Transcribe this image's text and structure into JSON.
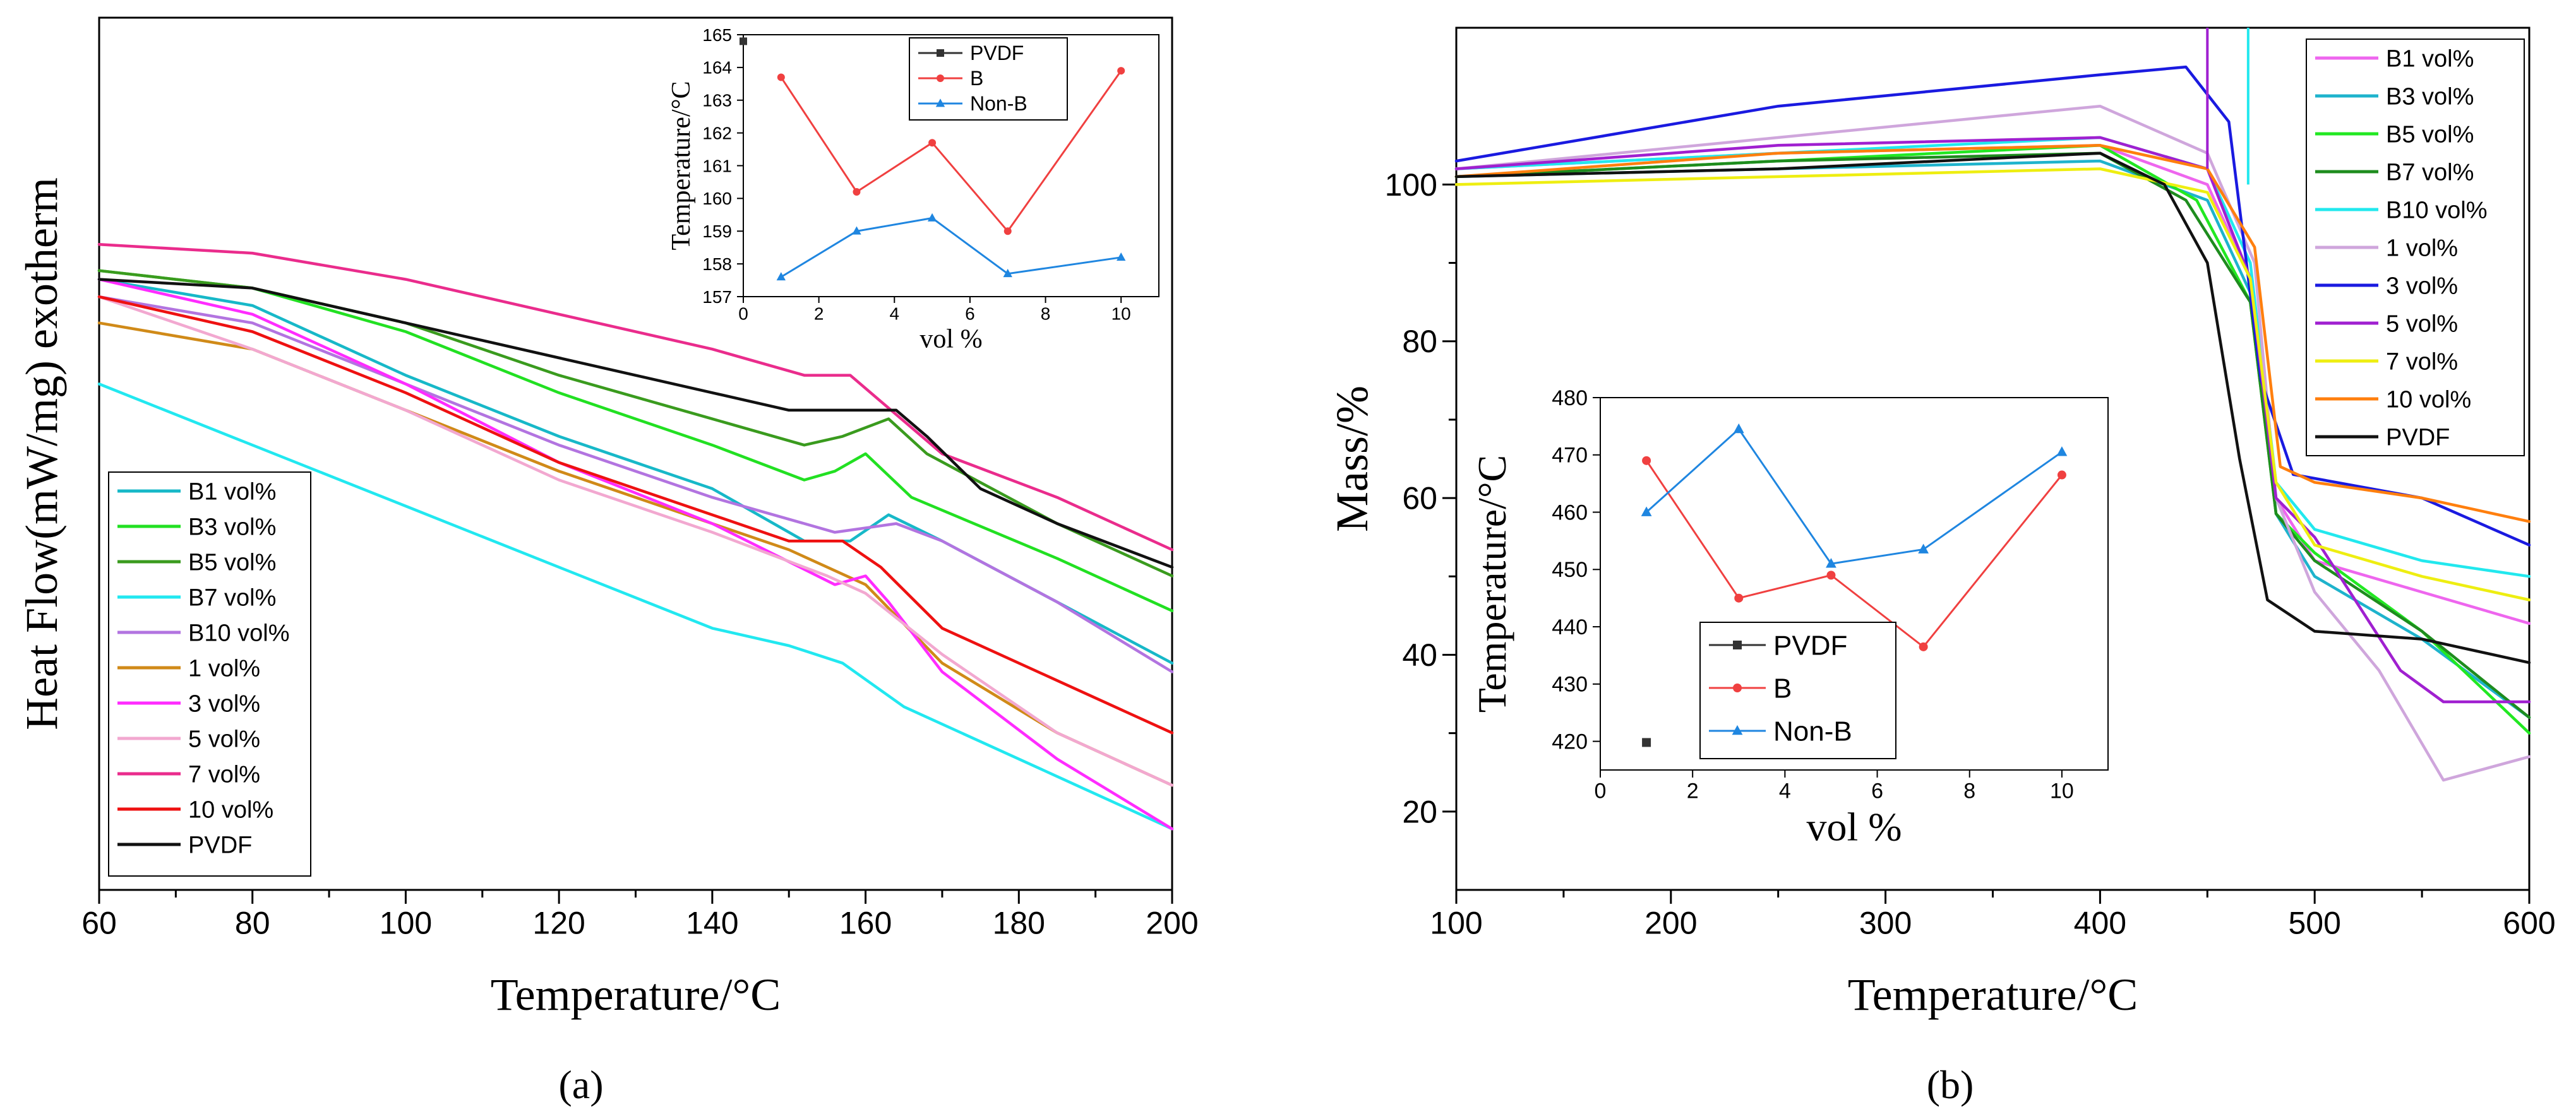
{
  "figure": {
    "caption_a": "(a)",
    "caption_b": "(b)"
  },
  "chart_data": [
    {
      "type": "line",
      "panel": "a",
      "title": "",
      "xlabel": "Temperature/°C",
      "ylabel": "Heat Flow(mW/mg) exotherm",
      "xlim": [
        60,
        200
      ],
      "ylim": [
        0,
        1
      ],
      "xticks": [
        60,
        80,
        100,
        120,
        140,
        160,
        180,
        200
      ],
      "y_tick_labels_shown": false,
      "legend_position": "bottom-left",
      "series": [
        {
          "name": "B1 vol%",
          "color": "#17b8c8",
          "x": [
            60,
            80,
            100,
            120,
            140,
            152,
            158,
            163,
            170,
            185,
            200
          ],
          "y": [
            0.7,
            0.67,
            0.59,
            0.52,
            0.46,
            0.4,
            0.4,
            0.43,
            0.4,
            0.33,
            0.26
          ]
        },
        {
          "name": "B3 vol%",
          "color": "#22e022",
          "x": [
            60,
            80,
            100,
            120,
            140,
            152,
            156,
            160,
            166,
            185,
            200
          ],
          "y": [
            0.71,
            0.69,
            0.64,
            0.57,
            0.51,
            0.47,
            0.48,
            0.5,
            0.45,
            0.38,
            0.32
          ]
        },
        {
          "name": "B5 vol%",
          "color": "#3a9b1e",
          "x": [
            60,
            80,
            100,
            120,
            140,
            152,
            157,
            163,
            168,
            185,
            200
          ],
          "y": [
            0.71,
            0.69,
            0.65,
            0.59,
            0.54,
            0.51,
            0.52,
            0.54,
            0.5,
            0.42,
            0.36
          ]
        },
        {
          "name": "B7 vol%",
          "color": "#22e8f0",
          "x": [
            60,
            80,
            100,
            120,
            140,
            150,
            157,
            165,
            185,
            200
          ],
          "y": [
            0.58,
            0.51,
            0.44,
            0.37,
            0.3,
            0.28,
            0.26,
            0.21,
            0.13,
            0.07
          ]
        },
        {
          "name": "B10 vol%",
          "color": "#b274e0",
          "x": [
            60,
            80,
            100,
            120,
            140,
            156,
            164,
            170,
            185,
            200
          ],
          "y": [
            0.68,
            0.65,
            0.58,
            0.51,
            0.45,
            0.41,
            0.42,
            0.4,
            0.33,
            0.25
          ]
        },
        {
          "name": "1 vol%",
          "color": "#d08a18",
          "x": [
            60,
            80,
            100,
            120,
            140,
            150,
            160,
            170,
            185,
            200
          ],
          "y": [
            0.65,
            0.62,
            0.55,
            0.48,
            0.42,
            0.39,
            0.35,
            0.26,
            0.18,
            0.12
          ]
        },
        {
          "name": "3 vol%",
          "color": "#ff2cff",
          "x": [
            60,
            80,
            100,
            120,
            140,
            156,
            160,
            163,
            170,
            185,
            200
          ],
          "y": [
            0.7,
            0.66,
            0.58,
            0.49,
            0.42,
            0.35,
            0.36,
            0.33,
            0.25,
            0.15,
            0.07
          ]
        },
        {
          "name": "5 vol%",
          "color": "#f2a8d0",
          "x": [
            60,
            80,
            100,
            120,
            140,
            155,
            160,
            170,
            185,
            200
          ],
          "y": [
            0.68,
            0.62,
            0.55,
            0.47,
            0.41,
            0.36,
            0.34,
            0.27,
            0.18,
            0.12
          ]
        },
        {
          "name": "7 vol%",
          "color": "#ea2c8c",
          "x": [
            60,
            80,
            100,
            120,
            140,
            152,
            158,
            162,
            170,
            185,
            200
          ],
          "y": [
            0.74,
            0.73,
            0.7,
            0.66,
            0.62,
            0.59,
            0.59,
            0.56,
            0.5,
            0.45,
            0.39
          ]
        },
        {
          "name": "10 vol%",
          "color": "#ee1111",
          "x": [
            60,
            80,
            100,
            120,
            140,
            150,
            157,
            162,
            170,
            185,
            200
          ],
          "y": [
            0.68,
            0.64,
            0.57,
            0.49,
            0.43,
            0.4,
            0.4,
            0.37,
            0.3,
            0.24,
            0.18
          ]
        },
        {
          "name": "PVDF",
          "color": "#111111",
          "x": [
            60,
            80,
            100,
            120,
            140,
            150,
            158,
            164,
            168,
            175,
            185,
            200
          ],
          "y": [
            0.7,
            0.69,
            0.65,
            0.61,
            0.57,
            0.55,
            0.55,
            0.55,
            0.52,
            0.46,
            0.42,
            0.37
          ]
        }
      ],
      "inset": {
        "type": "line",
        "xlabel": "vol %",
        "ylabel": "Temperature/°C",
        "xlim": [
          0,
          11
        ],
        "ylim": [
          157,
          165
        ],
        "xticks": [
          0,
          2,
          4,
          6,
          8,
          10
        ],
        "yticks": [
          157,
          158,
          159,
          160,
          161,
          162,
          163,
          164,
          165
        ],
        "legend_position": "top-right",
        "series": [
          {
            "name": "PVDF",
            "color": "#333333",
            "x": [
              0
            ],
            "y": [
              164.8
            ]
          },
          {
            "name": "B",
            "color": "#f04040",
            "x": [
              1,
              3,
              5,
              7,
              10
            ],
            "y": [
              163.7,
              160.2,
              161.7,
              159.0,
              163.9
            ]
          },
          {
            "name": "Non-B",
            "color": "#1f86e0",
            "x": [
              1,
              3,
              5,
              7,
              10
            ],
            "y": [
              157.6,
              159.0,
              159.4,
              157.7,
              158.2
            ]
          }
        ]
      }
    },
    {
      "type": "line",
      "panel": "b",
      "title": "",
      "xlabel": "Temperature/°C",
      "ylabel": "Mass/%",
      "xlim": [
        100,
        600
      ],
      "ylim": [
        10,
        120
      ],
      "xticks": [
        100,
        200,
        300,
        400,
        500,
        600
      ],
      "yticks": [
        20,
        40,
        60,
        80,
        100
      ],
      "legend_position": "top-right",
      "series": [
        {
          "name": "B1 vol%",
          "color": "#ee66ee",
          "x": [
            100,
            250,
            400,
            450,
            470,
            482,
            500,
            550,
            600
          ],
          "y": [
            102,
            104,
            105,
            100,
            88,
            60,
            52,
            48,
            44
          ]
        },
        {
          "name": "B3 vol%",
          "color": "#1eb3cc",
          "x": [
            100,
            250,
            400,
            450,
            472,
            482,
            500,
            550,
            600
          ],
          "y": [
            101,
            102,
            103,
            98,
            85,
            58,
            50,
            42,
            32
          ]
        },
        {
          "name": "B5 vol%",
          "color": "#22e822",
          "x": [
            100,
            250,
            400,
            445,
            470,
            482,
            500,
            550,
            600
          ],
          "y": [
            101,
            103,
            105,
            98,
            85,
            58,
            53,
            43,
            30
          ]
        },
        {
          "name": "B7 vol%",
          "color": "#1e8c1e",
          "x": [
            100,
            250,
            400,
            440,
            470,
            482,
            500,
            550,
            600
          ],
          "y": [
            101,
            103,
            104,
            98,
            85,
            58,
            52,
            43,
            32
          ]
        },
        {
          "name": "B10 vol%",
          "color": "#22e8ee",
          "x": [
            100,
            250,
            400,
            450,
            470,
            482,
            500,
            550,
            600
          ],
          "y": [
            102,
            104,
            106,
            102,
            90,
            62,
            56,
            52,
            50
          ]
        },
        {
          "name": "1 vol%",
          "color": "#cfa6dc",
          "x": [
            100,
            250,
            400,
            450,
            472,
            482,
            500,
            530,
            560,
            600
          ],
          "y": [
            102,
            106,
            110,
            104,
            90,
            60,
            48,
            38,
            24,
            27
          ]
        },
        {
          "name": "3 vol%",
          "color": "#1a1ae0",
          "x": [
            100,
            250,
            400,
            440,
            460,
            475,
            490,
            550,
            600
          ],
          "y": [
            103,
            110,
            114,
            115,
            108,
            75,
            63,
            60,
            54
          ]
        },
        {
          "name": "5 vol%",
          "color": "#a020d0",
          "x": [
            100,
            250,
            400,
            450,
            470,
            482,
            500,
            540,
            560,
            600
          ],
          "y": [
            102,
            105,
            106,
            102,
            88,
            60,
            55,
            38,
            34,
            34
          ]
        },
        {
          "name": "7 vol%",
          "color": "#eeee11",
          "x": [
            100,
            250,
            400,
            450,
            470,
            482,
            500,
            550,
            600
          ],
          "y": [
            100,
            101,
            102,
            99,
            88,
            62,
            54,
            50,
            47
          ]
        },
        {
          "name": "10 vol%",
          "color": "#ff7f0e",
          "x": [
            100,
            250,
            400,
            450,
            472,
            484,
            500,
            550,
            600
          ],
          "y": [
            101,
            104,
            105,
            102,
            92,
            64,
            62,
            60,
            57
          ]
        },
        {
          "name": "PVDF",
          "color": "#111111",
          "x": [
            100,
            250,
            400,
            430,
            450,
            465,
            478,
            500,
            550,
            600
          ],
          "y": [
            101,
            102,
            104,
            100,
            90,
            65,
            47,
            43,
            42,
            39
          ]
        }
      ],
      "inset": {
        "type": "line",
        "xlabel": "vol %",
        "ylabel": "Temperature/°C",
        "xlim": [
          0,
          11
        ],
        "ylim": [
          415,
          480
        ],
        "xticks": [
          0,
          2,
          4,
          6,
          8,
          10
        ],
        "yticks": [
          420,
          430,
          440,
          450,
          460,
          470,
          480
        ],
        "legend_position": "bottom-center",
        "series": [
          {
            "name": "PVDF",
            "color": "#333333",
            "x": [
              1
            ],
            "y": [
              419.8
            ]
          },
          {
            "name": "B",
            "color": "#f04040",
            "x": [
              1,
              3,
              5,
              7,
              10
            ],
            "y": [
              469.0,
              445.0,
              449.0,
              436.5,
              466.5
            ]
          },
          {
            "name": "Non-B",
            "color": "#1f86e0",
            "x": [
              1,
              3,
              5,
              7,
              10
            ],
            "y": [
              460.0,
              474.5,
              451.0,
              453.5,
              470.5
            ]
          }
        ]
      }
    }
  ]
}
